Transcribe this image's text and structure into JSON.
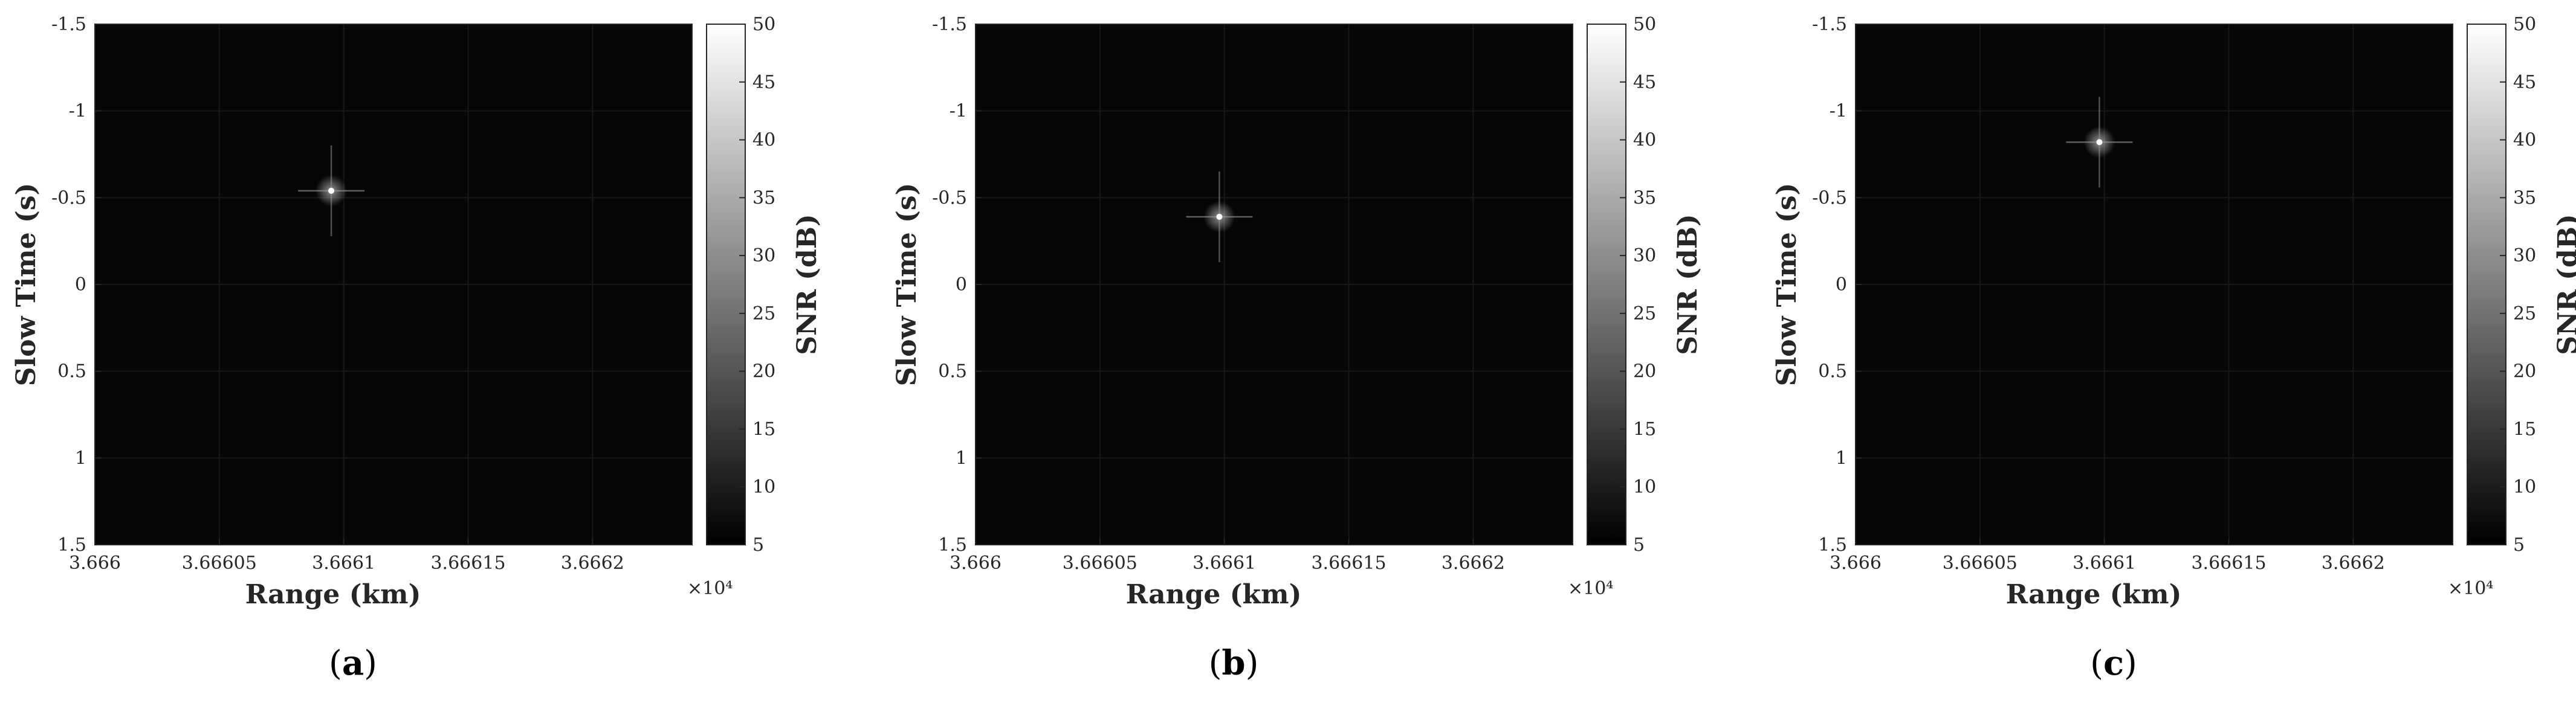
{
  "colors": {
    "plot_background": "#060606",
    "grid": "#181818",
    "frame": "#262626",
    "colormap": "gray",
    "colorbar_low": "#000000",
    "colorbar_high": "#ffffff"
  },
  "chart_data": [
    {
      "type": "heatmap",
      "caption": {
        "open": "(",
        "letter": "a",
        "close": ")"
      },
      "xlabel": "Range (km)",
      "ylabel": "Slow Time (s)",
      "x_exponent": "×10⁴",
      "xlim": [
        3.666,
        3.66624
      ],
      "ylim": [
        -1.5,
        1.5
      ],
      "y_reversed": true,
      "xticks": [
        3.666,
        3.66605,
        3.6661,
        3.66615,
        3.6662
      ],
      "xtick_labels": [
        "3.666",
        "3.66605",
        "3.6661",
        "3.66615",
        "3.6662"
      ],
      "yticks": [
        -1.5,
        -1,
        -0.5,
        0,
        0.5,
        1,
        1.5
      ],
      "ytick_labels": [
        "-1.5",
        "-1",
        "-0.5",
        "0",
        "0.5",
        "1",
        "1.5"
      ],
      "grid": true,
      "colorbar": {
        "label": "SNR (dB)",
        "range": [
          5,
          50
        ],
        "ticks": [
          5,
          10,
          15,
          20,
          25,
          30,
          35,
          40,
          45,
          50
        ],
        "tick_labels": [
          "5",
          "10",
          "15",
          "20",
          "25",
          "30",
          "35",
          "40",
          "45",
          "50"
        ]
      },
      "target": {
        "range": 3.666095,
        "slow_time": -0.54,
        "snr_db": 50
      }
    },
    {
      "type": "heatmap",
      "caption": {
        "open": "(",
        "letter": "b",
        "close": ")"
      },
      "xlabel": "Range (km)",
      "ylabel": "Slow Time (s)",
      "x_exponent": "×10⁴",
      "xlim": [
        3.666,
        3.66624
      ],
      "ylim": [
        -1.5,
        1.5
      ],
      "y_reversed": true,
      "xticks": [
        3.666,
        3.66605,
        3.6661,
        3.66615,
        3.6662
      ],
      "xtick_labels": [
        "3.666",
        "3.66605",
        "3.6661",
        "3.66615",
        "3.6662"
      ],
      "yticks": [
        -1.5,
        -1,
        -0.5,
        0,
        0.5,
        1,
        1.5
      ],
      "ytick_labels": [
        "-1.5",
        "-1",
        "-0.5",
        "0",
        "0.5",
        "1",
        "1.5"
      ],
      "grid": true,
      "colorbar": {
        "label": "SNR (dB)",
        "range": [
          5,
          50
        ],
        "ticks": [
          5,
          10,
          15,
          20,
          25,
          30,
          35,
          40,
          45,
          50
        ],
        "tick_labels": [
          "5",
          "10",
          "15",
          "20",
          "25",
          "30",
          "35",
          "40",
          "45",
          "50"
        ]
      },
      "target": {
        "range": 3.666098,
        "slow_time": -0.39,
        "snr_db": 50
      }
    },
    {
      "type": "heatmap",
      "caption": {
        "open": "(",
        "letter": "c",
        "close": ")"
      },
      "xlabel": "Range (km)",
      "ylabel": "Slow Time (s)",
      "x_exponent": "×10⁴",
      "xlim": [
        3.666,
        3.66624
      ],
      "ylim": [
        -1.5,
        1.5
      ],
      "y_reversed": true,
      "xticks": [
        3.666,
        3.66605,
        3.6661,
        3.66615,
        3.6662
      ],
      "xtick_labels": [
        "3.666",
        "3.66605",
        "3.6661",
        "3.66615",
        "3.6662"
      ],
      "yticks": [
        -1.5,
        -1,
        -0.5,
        0,
        0.5,
        1,
        1.5
      ],
      "ytick_labels": [
        "-1.5",
        "-1",
        "-0.5",
        "0",
        "0.5",
        "1",
        "1.5"
      ],
      "grid": true,
      "colorbar": {
        "label": "SNR (dB)",
        "range": [
          5,
          50
        ],
        "ticks": [
          5,
          10,
          15,
          20,
          25,
          30,
          35,
          40,
          45,
          50
        ],
        "tick_labels": [
          "5",
          "10",
          "15",
          "20",
          "25",
          "30",
          "35",
          "40",
          "45",
          "50"
        ]
      },
      "target": {
        "range": 3.666098,
        "slow_time": -0.82,
        "snr_db": 50
      }
    }
  ]
}
